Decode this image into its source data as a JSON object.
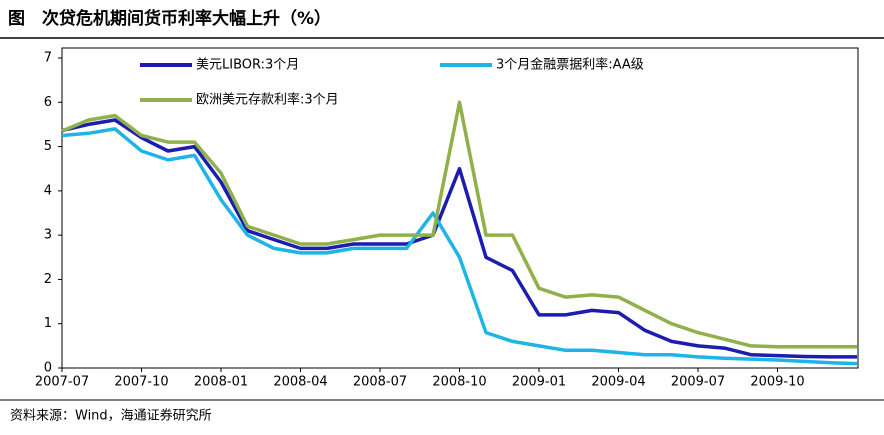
{
  "header": {
    "title": "图　次贷危机期间货币利率大幅上升（%）"
  },
  "footer": {
    "source": "资料来源：Wind，海通证券研究所"
  },
  "chart_data": {
    "type": "line",
    "x": [
      "2007-07",
      "2007-08",
      "2007-09",
      "2007-10",
      "2007-11",
      "2007-12",
      "2008-01",
      "2008-02",
      "2008-03",
      "2008-04",
      "2008-05",
      "2008-06",
      "2008-07",
      "2008-08",
      "2008-09",
      "2008-10",
      "2008-11",
      "2008-12",
      "2009-01",
      "2009-02",
      "2009-03",
      "2009-04",
      "2009-05",
      "2009-06",
      "2009-07",
      "2009-08",
      "2009-09",
      "2009-10",
      "2009-11",
      "2009-12",
      "2010-01"
    ],
    "xticks": [
      "2007-07",
      "2007-10",
      "2008-01",
      "2008-04",
      "2008-07",
      "2008-10",
      "2009-01",
      "2009-04",
      "2009-07",
      "2009-10"
    ],
    "ylim": [
      0,
      7
    ],
    "yticks": [
      0,
      1,
      2,
      3,
      4,
      5,
      6,
      7
    ],
    "series": [
      {
        "name": "美元LIBOR:3个月",
        "color": "#1c1cb0",
        "values": [
          5.36,
          5.5,
          5.6,
          5.2,
          4.9,
          5.0,
          4.2,
          3.1,
          2.9,
          2.7,
          2.7,
          2.8,
          2.8,
          2.8,
          3.0,
          4.5,
          2.5,
          2.2,
          1.2,
          1.2,
          1.3,
          1.25,
          0.85,
          0.6,
          0.5,
          0.45,
          0.3,
          0.28,
          0.26,
          0.25,
          0.25
        ]
      },
      {
        "name": "3个月金融票据利率:AA级",
        "color": "#1fb4e6",
        "values": [
          5.25,
          5.3,
          5.4,
          4.9,
          4.7,
          4.8,
          3.8,
          3.0,
          2.7,
          2.6,
          2.6,
          2.7,
          2.7,
          2.7,
          3.5,
          2.5,
          0.8,
          0.6,
          0.5,
          0.4,
          0.4,
          0.35,
          0.3,
          0.3,
          0.25,
          0.22,
          0.2,
          0.18,
          0.15,
          0.12,
          0.1
        ]
      },
      {
        "name": "欧洲美元存款利率:3个月",
        "color": "#8fb04a",
        "values": [
          5.35,
          5.6,
          5.7,
          5.25,
          5.1,
          5.1,
          4.4,
          3.2,
          3.0,
          2.8,
          2.8,
          2.9,
          3.0,
          3.0,
          3.0,
          6.0,
          3.0,
          3.0,
          1.8,
          1.6,
          1.65,
          1.6,
          1.3,
          1.0,
          0.8,
          0.65,
          0.5,
          0.48,
          0.48,
          0.48,
          0.48
        ]
      }
    ]
  }
}
